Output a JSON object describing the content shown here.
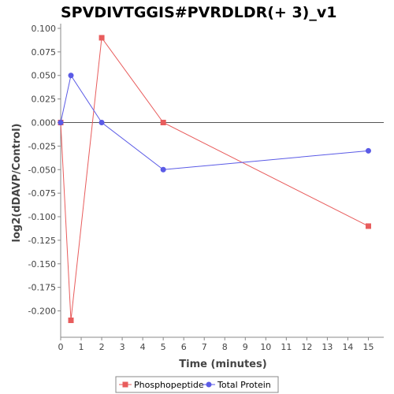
{
  "chart_data": {
    "type": "line",
    "title": "SPVDIVTGGIS#PVRDLDR(+ 3)_v1",
    "xlabel": "Time (minutes)",
    "ylabel": "log2(dDAVP/Control)",
    "xlim": [
      0,
      15.75
    ],
    "ylim": [
      -0.228,
      0.105
    ],
    "xticks": [
      0,
      1,
      2,
      3,
      4,
      5,
      6,
      7,
      8,
      9,
      10,
      11,
      12,
      13,
      14,
      15
    ],
    "xtick_labels": [
      "0",
      "1",
      "2",
      "3",
      "4",
      "5",
      "6",
      "7",
      "8",
      "9",
      "10",
      "11",
      "12",
      "13",
      "14",
      "15"
    ],
    "yticks": [
      0.1,
      0.075,
      0.05,
      0.025,
      0,
      -0.025,
      -0.05,
      -0.075,
      -0.1,
      -0.125,
      -0.15,
      -0.175,
      -0.2
    ],
    "ytick_labels": [
      "0.100",
      "0.075",
      "0.050",
      "0.025",
      "0.000",
      "-0.025",
      "-0.050",
      "-0.075",
      "-0.100",
      "-0.125",
      "-0.150",
      "-0.175",
      "-0.200"
    ],
    "zero_line": true,
    "grid": false,
    "legend_position": "bottom-center",
    "series": [
      {
        "name": "Phosphopeptide",
        "color": "#e85c5c",
        "marker": "square",
        "x": [
          0,
          0.5,
          2,
          5,
          15
        ],
        "y": [
          0,
          -0.21,
          0.09,
          0,
          -0.11
        ]
      },
      {
        "name": "Total Protein",
        "color": "#5a5ae6",
        "marker": "circle",
        "x": [
          0,
          0.5,
          2,
          5,
          15
        ],
        "y": [
          0,
          0.05,
          0,
          -0.05,
          -0.03
        ]
      }
    ]
  }
}
